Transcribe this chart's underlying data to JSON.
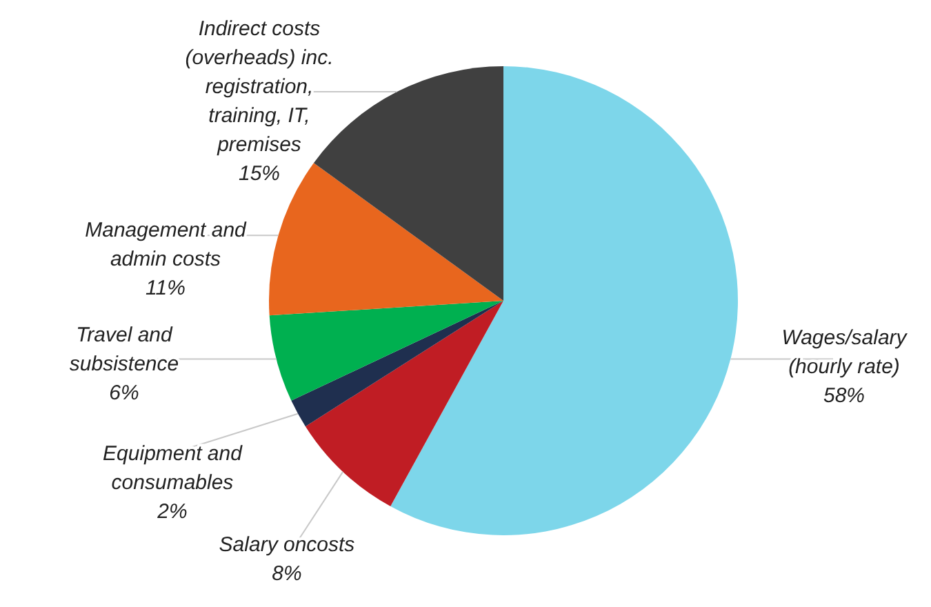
{
  "chart_data": {
    "type": "pie",
    "categories": [
      "Wages/salary (hourly rate)",
      "Salary oncosts",
      "Equipment and consumables",
      "Travel and subsistence",
      "Management and admin costs",
      "Indirect costs (overheads) inc. registration, training, IT, premises"
    ],
    "values": [
      58,
      8,
      2,
      6,
      11,
      15
    ],
    "value_labels": [
      "58%",
      "8%",
      "2%",
      "6%",
      "11%",
      "15%"
    ],
    "colors": [
      "#7dd6ea",
      "#c01d24",
      "#1f2f4f",
      "#00b050",
      "#e8661e",
      "#404040"
    ],
    "legend": false
  }
}
